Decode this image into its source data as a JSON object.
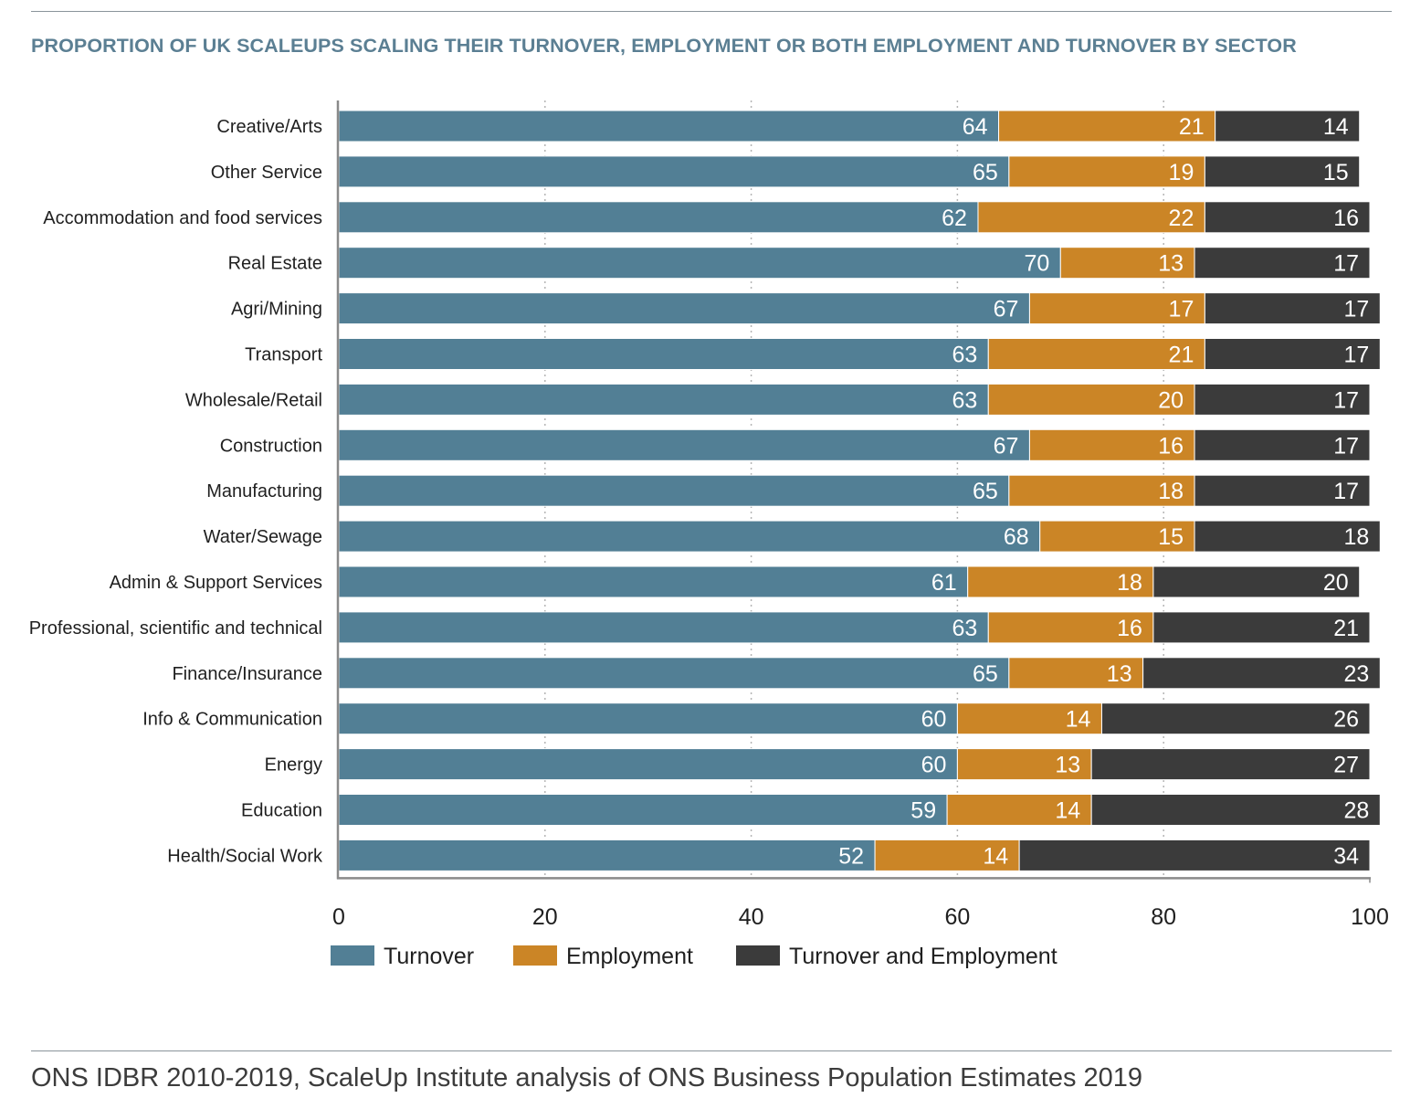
{
  "title": "PROPORTION OF UK SCALEUPS SCALING THEIR TURNOVER, EMPLOYMENT OR BOTH EMPLOYMENT AND TURNOVER BY SECTOR",
  "source": "ONS IDBR 2010-2019, ScaleUp Institute analysis of ONS Business Population Estimates 2019",
  "chart_data": {
    "type": "bar",
    "orientation": "horizontal",
    "stacked": true,
    "categories": [
      "Creative/Arts",
      "Other Service",
      "Accommodation and food services",
      "Real Estate",
      "Agri/Mining",
      "Transport",
      "Wholesale/Retail",
      "Construction",
      "Manufacturing",
      "Water/Sewage",
      "Admin & Support Services",
      "Professional, scientific and technical",
      "Finance/Insurance",
      "Info & Communication",
      "Energy",
      "Education",
      "Health/Social Work"
    ],
    "series": [
      {
        "name": "Turnover",
        "color": "#527f95",
        "values": [
          64,
          65,
          62,
          70,
          67,
          63,
          63,
          67,
          65,
          68,
          61,
          63,
          65,
          60,
          60,
          59,
          52
        ]
      },
      {
        "name": "Employment",
        "color": "#cb8526",
        "values": [
          21,
          19,
          22,
          13,
          17,
          21,
          20,
          16,
          18,
          15,
          18,
          16,
          13,
          14,
          13,
          14,
          14
        ]
      },
      {
        "name": "Turnover and Employment",
        "color": "#3b3b3b",
        "values": [
          14,
          15,
          16,
          17,
          17,
          17,
          17,
          17,
          17,
          18,
          20,
          21,
          23,
          26,
          27,
          28,
          34
        ]
      }
    ],
    "xlim": [
      0,
      100
    ],
    "xticks": [
      "0",
      "20",
      "40",
      "60",
      "80",
      "100"
    ],
    "grid": "vertical dotted",
    "legend_position": "bottom-left"
  }
}
